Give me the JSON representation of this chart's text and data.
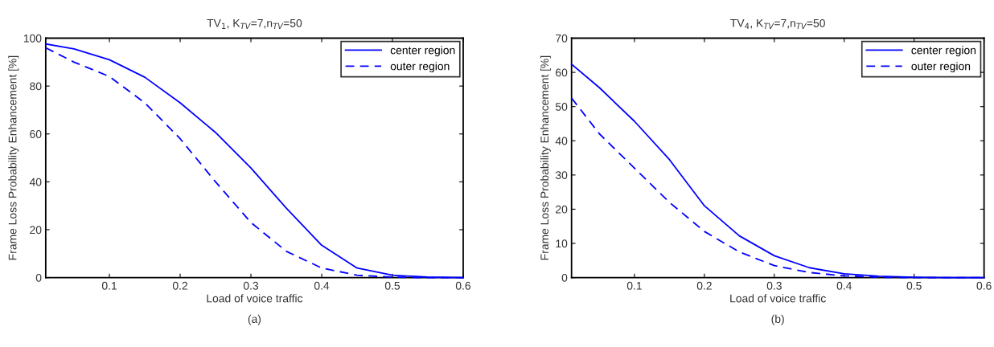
{
  "chart_data": [
    {
      "type": "line",
      "title": "TV$_{1}$, K$_{TV}$=7,n$_{TV}$=50",
      "xlabel": "Load of voice traffic",
      "ylabel": "Frame Loss Probability Enhancement [%]",
      "annotations": [
        "(a)"
      ],
      "x": [
        0.01,
        0.05,
        0.1,
        0.15,
        0.2,
        0.25,
        0.3,
        0.35,
        0.4,
        0.45,
        0.5,
        0.55,
        0.6
      ],
      "series": [
        {
          "name": "center region",
          "color": "#0000ff",
          "line_style": "solid",
          "values": [
            97.6,
            95.5,
            91,
            83.7,
            73,
            60.6,
            45.8,
            29,
            13.5,
            4,
            1,
            0.2,
            0
          ]
        },
        {
          "name": "outer region",
          "color": "#0000ff",
          "line_style": "dashed",
          "values": [
            96,
            90,
            84,
            73,
            58,
            40,
            23,
            11,
            4,
            1,
            0.2,
            0,
            0
          ]
        }
      ],
      "xlim": [
        0.01,
        0.6
      ],
      "ylim": [
        0,
        100
      ],
      "xticks": [
        0.1,
        0.2,
        0.3,
        0.4,
        0.5,
        0.6
      ],
      "yticks": [
        0,
        20,
        40,
        60,
        80,
        100
      ],
      "grid": false,
      "legend": "top right",
      "marker": "none"
    },
    {
      "type": "line",
      "title": "TV$_{4}$, K$_{TV}$=7,n$_{TV}$=50",
      "xlabel": "Load of voice traffic",
      "ylabel": "Frame Loss Probability Enhancement [%]",
      "annotations": [
        "(b)"
      ],
      "x": [
        0.01,
        0.05,
        0.1,
        0.15,
        0.2,
        0.25,
        0.3,
        0.35,
        0.4,
        0.45,
        0.5,
        0.55,
        0.6
      ],
      "series": [
        {
          "name": "center region",
          "color": "#0000ff",
          "line_style": "solid",
          "values": [
            62.4,
            55.5,
            45.7,
            34.5,
            21,
            12.2,
            6.4,
            2.9,
            1.1,
            0.4,
            0.1,
            0,
            0
          ]
        },
        {
          "name": "outer region",
          "color": "#0000ff",
          "line_style": "dashed",
          "values": [
            52.5,
            42,
            32,
            22,
            13.5,
            7.5,
            3.5,
            1.5,
            0.5,
            0.1,
            0,
            0,
            0
          ]
        }
      ],
      "xlim": [
        0.01,
        0.6
      ],
      "ylim": [
        0,
        70
      ],
      "xticks": [
        0.1,
        0.2,
        0.3,
        0.4,
        0.5,
        0.6
      ],
      "yticks": [
        0,
        10,
        20,
        30,
        40,
        50,
        60,
        70
      ],
      "grid": false,
      "legend": "top right",
      "marker": "none"
    }
  ]
}
